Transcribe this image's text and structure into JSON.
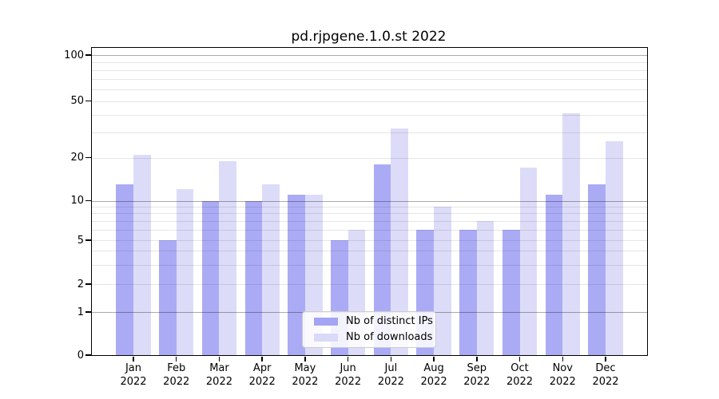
{
  "title": "pd.rjpgene.1.0.st 2022",
  "chart_data": {
    "type": "bar",
    "title": "pd.rjpgene.1.0.st 2022",
    "categories": [
      "Jan",
      "Feb",
      "Mar",
      "Apr",
      "May",
      "Jun",
      "Jul",
      "Aug",
      "Sep",
      "Oct",
      "Nov",
      "Dec"
    ],
    "year_label": "2022",
    "series": [
      {
        "name": "Nb of distinct IPs",
        "color": "#a4a4f4",
        "values": [
          13,
          5,
          10,
          10,
          11,
          5,
          18,
          6,
          6,
          6,
          11,
          13
        ]
      },
      {
        "name": "Nb of downloads",
        "color": "#d9d9f8",
        "values": [
          21,
          12,
          19,
          13,
          11,
          6,
          32,
          9,
          7,
          17,
          41,
          26
        ]
      }
    ],
    "xlabel": "",
    "ylabel": "",
    "yscale": "log1p",
    "ylim": [
      0,
      108
    ],
    "yticks": [
      0,
      1,
      2,
      5,
      10,
      20,
      50,
      100
    ],
    "grid": true,
    "grid_major": [
      1,
      10,
      100
    ],
    "grid_minor": [
      2,
      3,
      4,
      5,
      6,
      7,
      8,
      9,
      20,
      30,
      40,
      50,
      60,
      70,
      80,
      90
    ],
    "legend_position": "inside-bottom-center",
    "colors": {
      "background": "#ffffff",
      "axis": "#000000",
      "text": "#000000",
      "grid_minor": "#e6e6e6",
      "grid_major": "#ababab",
      "legend_border": "#cccccc",
      "legend_bg": "#ffffff"
    }
  }
}
